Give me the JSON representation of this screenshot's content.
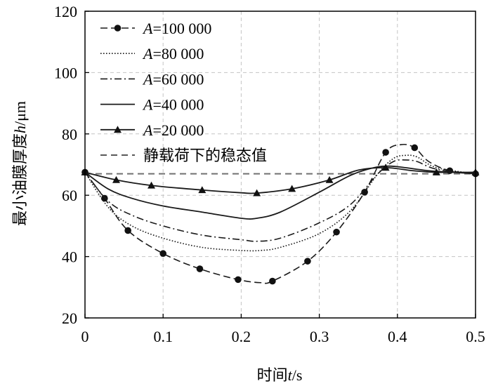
{
  "chart_data": {
    "type": "line",
    "title": "",
    "xlabel": {
      "prefix": "时间",
      "var": "t",
      "unit": "/s"
    },
    "ylabel": {
      "prefix": "最小油膜厚度",
      "var": "h",
      "unit": "/μm"
    },
    "xlim": [
      0,
      0.5
    ],
    "ylim": [
      20,
      120
    ],
    "xticks": [
      "0",
      "0.1",
      "0.2",
      "0.3",
      "0.4",
      "0.5"
    ],
    "yticks": [
      "20",
      "40",
      "60",
      "80",
      "100",
      "120"
    ],
    "grid": true,
    "legend_position": "top-left",
    "series": [
      {
        "name": "A=100 000",
        "legend_var": "A",
        "legend_value": "=100 000",
        "style": "long-dash",
        "marker": "circle",
        "x": [
          0,
          0.025,
          0.055,
          0.1,
          0.147,
          0.196,
          0.225,
          0.24,
          0.285,
          0.322,
          0.358,
          0.385,
          0.405,
          0.422,
          0.44,
          0.467,
          0.5
        ],
        "y": [
          67.5,
          59,
          48.5,
          41,
          36,
          32.5,
          31.5,
          32,
          38.5,
          48,
          61,
          74,
          76.5,
          75.5,
          71,
          68,
          67
        ],
        "markers_x": [
          0,
          0.025,
          0.055,
          0.1,
          0.147,
          0.196,
          0.24,
          0.285,
          0.322,
          0.358,
          0.385,
          0.422,
          0.467,
          0.5
        ],
        "markers_y": [
          67.5,
          59,
          48.5,
          41,
          36,
          32.5,
          32,
          38.5,
          48,
          61,
          74,
          75.5,
          68,
          67
        ]
      },
      {
        "name": "A=80 000",
        "legend_var": "A",
        "legend_value": "=80 000",
        "style": "dotted",
        "marker": "none",
        "x": [
          0,
          0.03,
          0.06,
          0.1,
          0.15,
          0.2,
          0.225,
          0.25,
          0.3,
          0.34,
          0.375,
          0.395,
          0.41,
          0.425,
          0.45,
          0.5
        ],
        "y": [
          67.5,
          56,
          50,
          46,
          43,
          42,
          42,
          43,
          47.5,
          55,
          67,
          72,
          73,
          72.5,
          69,
          67
        ]
      },
      {
        "name": "A=60 000",
        "legend_var": "A",
        "legend_value": "=60 000",
        "style": "dash-dot",
        "marker": "none",
        "x": [
          0,
          0.03,
          0.06,
          0.1,
          0.15,
          0.2,
          0.22,
          0.25,
          0.3,
          0.34,
          0.375,
          0.395,
          0.41,
          0.425,
          0.45,
          0.5
        ],
        "y": [
          67.5,
          58,
          53.5,
          50,
          47,
          45.5,
          45,
          46,
          51,
          57,
          67,
          71,
          71.5,
          71,
          68.5,
          67
        ]
      },
      {
        "name": "A=40 000",
        "legend_var": "A",
        "legend_value": "=40 000",
        "style": "solid",
        "marker": "none",
        "x": [
          0,
          0.03,
          0.06,
          0.1,
          0.15,
          0.2,
          0.22,
          0.25,
          0.3,
          0.34,
          0.37,
          0.39,
          0.41,
          0.44,
          0.47,
          0.5
        ],
        "y": [
          67.5,
          62,
          59,
          56.5,
          54.5,
          52.5,
          52.5,
          54.5,
          61,
          66.5,
          69,
          69.5,
          69,
          68,
          67.5,
          67
        ]
      },
      {
        "name": "A=20 000",
        "legend_var": "A",
        "legend_value": "=20 000",
        "style": "solid",
        "marker": "triangle",
        "x": [
          0,
          0.04,
          0.085,
          0.15,
          0.2,
          0.22,
          0.265,
          0.313,
          0.35,
          0.385,
          0.42,
          0.45,
          0.5
        ],
        "y": [
          67.5,
          65,
          63.2,
          61.7,
          60.8,
          60.7,
          62.1,
          65,
          68.2,
          69,
          68,
          67.5,
          67.5
        ],
        "markers_x": [
          0,
          0.04,
          0.085,
          0.15,
          0.22,
          0.265,
          0.313,
          0.385,
          0.45,
          0.5
        ],
        "markers_y": [
          67.5,
          65,
          63.2,
          61.7,
          60.7,
          62.1,
          65,
          69,
          67.5,
          67.5
        ]
      },
      {
        "name": "静载荷下的稳态值",
        "legend_var": "",
        "legend_value": "静载荷下的稳态值",
        "style": "short-dash-gray",
        "marker": "none",
        "x": [
          0,
          0.5
        ],
        "y": [
          67,
          67
        ]
      }
    ]
  }
}
